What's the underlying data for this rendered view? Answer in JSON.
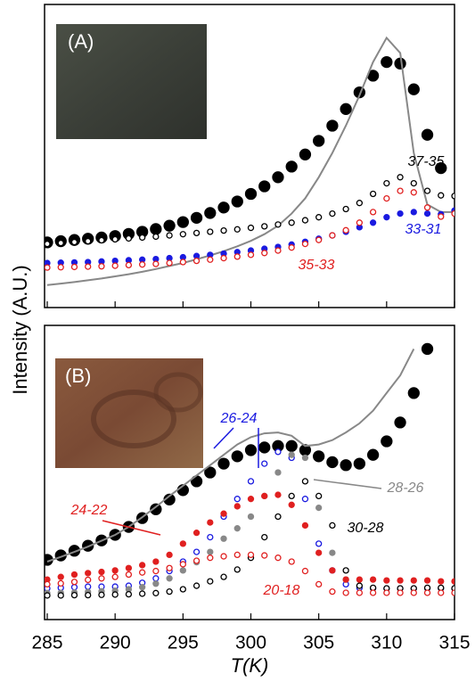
{
  "chart_data": [
    {
      "type": "line",
      "panel_label": "(A)",
      "ylabel": "Intensity (A.U.)",
      "x": [
        285,
        286,
        287,
        288,
        289,
        290,
        291,
        292,
        293,
        294,
        295,
        296,
        297,
        298,
        299,
        300,
        301,
        302,
        303,
        304,
        305,
        306,
        307,
        308,
        309,
        310,
        311,
        312,
        313,
        314,
        315
      ],
      "xlim": [
        285,
        315
      ],
      "ylim": [
        0,
        100
      ],
      "series": [
        {
          "color": "#000000",
          "marker": "filled-large",
          "values": [
            21.5,
            21.9,
            22.3,
            22.7,
            23.1,
            23.6,
            24.3,
            25,
            25.9,
            27,
            28.2,
            29.6,
            31.2,
            33,
            35,
            37.5,
            40,
            43,
            46.5,
            50.5,
            55,
            60,
            65.5,
            71,
            76.5,
            81,
            80.5,
            72,
            57,
            46,
            null
          ]
        },
        {
          "color": "#888888",
          "marker": "line",
          "values": [
            7.4,
            7.9,
            8.4,
            9,
            9.6,
            10.3,
            11,
            11.8,
            12.7,
            13.7,
            14.7,
            15.9,
            17.2,
            18.6,
            20.2,
            22,
            24.2,
            27,
            31,
            36,
            43,
            51,
            60,
            70,
            81,
            89,
            84,
            51,
            34,
            31.5,
            31.5
          ]
        },
        {
          "name": "37-35",
          "color": "#000000",
          "marker": "open",
          "values": [
            21,
            21.3,
            21.6,
            21.9,
            22.2,
            22.5,
            22.8,
            23.1,
            23.4,
            23.8,
            24.2,
            24.6,
            25,
            25.4,
            25.8,
            26.3,
            26.8,
            27.4,
            28,
            28.8,
            29.8,
            31,
            32.5,
            34.5,
            37.5,
            41,
            43,
            41,
            38.5,
            37,
            36.8
          ]
        },
        {
          "name": "33-31",
          "color": "#1a1ae0",
          "marker": "filled",
          "values": [
            14.7,
            14.8,
            14.9,
            15,
            15.2,
            15.4,
            15.6,
            15.8,
            16,
            16.3,
            16.6,
            17,
            17.4,
            17.8,
            18.3,
            18.8,
            19.4,
            20,
            20.8,
            21.7,
            22.7,
            23.8,
            25,
            26.5,
            28,
            29.8,
            31,
            31.5,
            31,
            30.8,
            32
          ]
        },
        {
          "name": "35-33",
          "color": "#e02020",
          "marker": "open",
          "values": [
            13.2,
            13.3,
            13.4,
            13.5,
            13.6,
            13.8,
            14,
            14.2,
            14.4,
            14.7,
            15,
            15.4,
            15.8,
            16.3,
            16.8,
            17.4,
            18,
            18.8,
            19.8,
            21,
            22.3,
            23.8,
            25.5,
            28,
            31.5,
            36,
            38.5,
            38,
            33,
            30,
            31
          ]
        }
      ]
    },
    {
      "type": "line",
      "panel_label": "(B)",
      "xlabel": "T(K)",
      "x": [
        285,
        286,
        287,
        288,
        289,
        290,
        291,
        292,
        293,
        294,
        295,
        296,
        297,
        298,
        299,
        300,
        301,
        302,
        303,
        304,
        305,
        306,
        307,
        308,
        309,
        310,
        311,
        312,
        313,
        314,
        315
      ],
      "xlim": [
        285,
        315
      ],
      "xticks": [
        285,
        290,
        295,
        300,
        305,
        310,
        315
      ],
      "ylim": [
        0,
        100
      ],
      "series": [
        {
          "color": "#000000",
          "marker": "filled-large",
          "values": [
            20.3,
            21.8,
            23.4,
            25.1,
            26.9,
            28.8,
            31.5,
            34.5,
            37.5,
            40.8,
            44,
            47,
            50,
            53,
            55.5,
            57.6,
            58.5,
            59,
            59,
            57.6,
            55.5,
            53.5,
            52.5,
            53,
            56,
            60.6,
            67,
            77,
            92,
            null,
            null
          ]
        },
        {
          "color": "#888888",
          "marker": "line",
          "values": [
            19.7,
            21.3,
            23,
            24.8,
            26.8,
            28.8,
            31.5,
            34.8,
            38.3,
            42,
            45.5,
            49,
            52.5,
            56,
            59.5,
            62,
            63.3,
            63.6,
            62.5,
            59,
            59.5,
            61,
            63.6,
            66.7,
            71,
            77,
            83,
            92,
            null,
            null,
            null
          ]
        },
        {
          "name": "26-24",
          "color": "#1a1ae0",
          "marker": "open",
          "values": [
            10.6,
            10.8,
            11,
            11.2,
            11.2,
            11.2,
            11.5,
            12.5,
            14,
            16.5,
            19.7,
            23,
            28,
            35,
            41,
            47,
            53,
            57,
            55,
            41,
            25.8,
            16.7,
            12,
            10.8,
            10.6,
            10.6,
            10.6,
            10.6,
            10.6,
            10.6,
            10.6
          ]
        },
        {
          "name": "28-26",
          "color": "#888888",
          "marker": "filled",
          "values": [
            9,
            9.1,
            9.2,
            9.4,
            9.6,
            9.8,
            10.3,
            11,
            12.2,
            14,
            16.7,
            19.5,
            23,
            27.5,
            31,
            35,
            42,
            50,
            56,
            55,
            38,
            22.7,
            13.6,
            11.5,
            10.6,
            10.6,
            10.6,
            10.6,
            10.6,
            10.6,
            10.6
          ]
        },
        {
          "name": "30-28",
          "color": "#000000",
          "marker": "open",
          "values": [
            8.2,
            8.2,
            8.3,
            8.3,
            8.4,
            8.5,
            8.6,
            8.8,
            9,
            9.5,
            10.3,
            11.5,
            13,
            14.5,
            17,
            21,
            28,
            35,
            42,
            47,
            42,
            32,
            16.7,
            11.5,
            10.8,
            10.6,
            10.6,
            10.6,
            10.8,
            10.8,
            10.6
          ]
        },
        {
          "name": "24-22",
          "color": "#e02020",
          "marker": "filled",
          "values": [
            13.6,
            14.5,
            15.3,
            15.8,
            16.2,
            16.7,
            17.5,
            18.5,
            19.7,
            22,
            25.8,
            29.5,
            33,
            36,
            38.5,
            41,
            42,
            42.4,
            39,
            32,
            22.7,
            16.7,
            13.6,
            13.6,
            13.6,
            13.3,
            13.3,
            13.3,
            13.3,
            13,
            13
          ]
        },
        {
          "name": "20-18",
          "color": "#e02020",
          "marker": "open",
          "values": [
            12,
            12.3,
            12.8,
            13.5,
            14,
            14.5,
            15.3,
            16,
            16.5,
            17.5,
            18.8,
            20,
            21,
            21.5,
            22,
            22,
            21.8,
            21,
            19.7,
            16.5,
            12,
            9.5,
            9.1,
            9.1,
            9.1,
            9.1,
            9.1,
            9.1,
            9.1,
            9.1,
            9.1
          ]
        }
      ]
    }
  ]
}
